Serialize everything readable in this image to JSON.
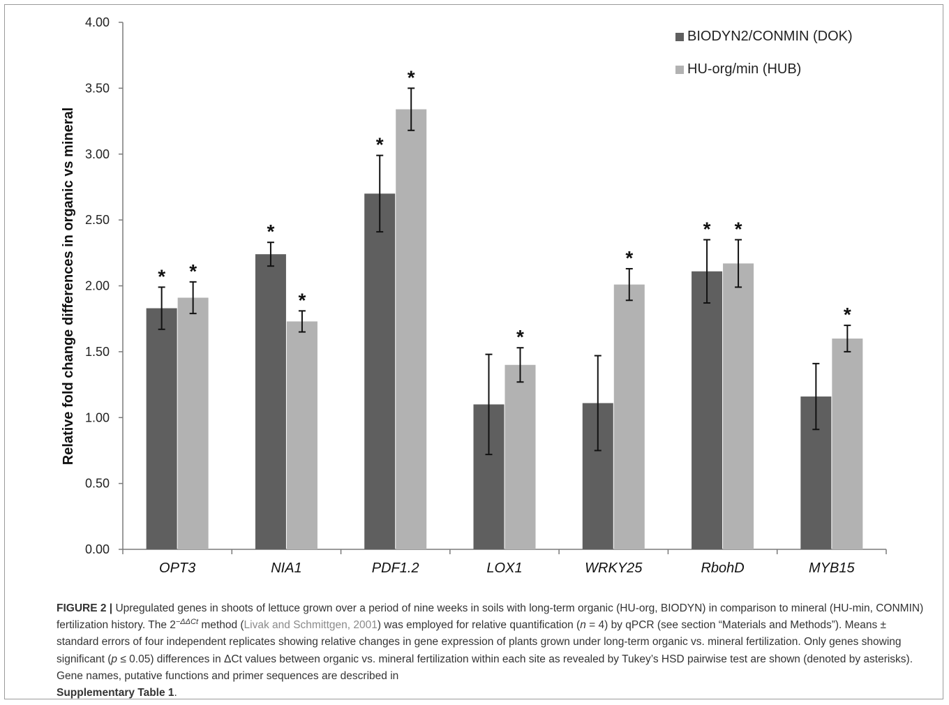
{
  "chart_data": {
    "type": "bar",
    "ylabel": "Relative fold change differences in organic vs mineral",
    "xlabel": "",
    "ylim": [
      0,
      4
    ],
    "yticks": [
      "0.00",
      "0.50",
      "1.00",
      "1.50",
      "2.00",
      "2.50",
      "3.00",
      "3.50",
      "4.00"
    ],
    "categories": [
      "OPT3",
      "NIA1",
      "PDF1.2",
      "LOX1",
      "WRKY25",
      "RbohD",
      "MYB15"
    ],
    "legend_position": "top-right",
    "grid": false,
    "series": [
      {
        "name": "BIODYN2/CONMIN (DOK)",
        "color": "#5f5f5f",
        "values": [
          1.83,
          2.24,
          2.7,
          1.1,
          1.11,
          2.11,
          1.16
        ],
        "errors": [
          0.16,
          0.09,
          0.29,
          0.38,
          0.36,
          0.24,
          0.25
        ],
        "significant": [
          true,
          true,
          true,
          false,
          false,
          true,
          false
        ]
      },
      {
        "name": "HU-org/min (HUB)",
        "color": "#b2b2b2",
        "values": [
          1.91,
          1.73,
          3.34,
          1.4,
          2.01,
          2.17,
          1.6
        ],
        "errors": [
          0.12,
          0.08,
          0.16,
          0.13,
          0.12,
          0.18,
          0.1
        ],
        "significant": [
          true,
          true,
          true,
          true,
          true,
          true,
          true
        ]
      }
    ],
    "significance_marker": "*"
  },
  "caption": {
    "figure_label": "FIGURE 2 |",
    "part1": " Upregulated genes in shoots of lettuce grown over a period of nine weeks in soils with long-term organic (HU-org, BIODYN) in comparison to mineral (HU-min, CONMIN) fertilization history. The 2",
    "superscript": "−ΔΔCt",
    "part2": " method (",
    "reference": "Livak and Schmittgen, 2001",
    "part3": ") was employed for relative quantification (",
    "n_var": "n",
    "part4": " = 4) by qPCR (see section “Materials and Methods”). Means ± standard errors of four independent replicates showing relative changes in gene expression of plants grown under long-term organic vs. mineral fertilization. Only genes showing significant (",
    "p_var": "p",
    "part5": " ≤ 0.05) differences in ΔCt values between organic vs. mineral fertilization within each site as revealed by Tukey’s HSD pairwise test are shown (denoted by asterisks). Gene names, putative functions and primer sequences are described in ",
    "supp": "Supplementary Table 1",
    "part6": "."
  }
}
